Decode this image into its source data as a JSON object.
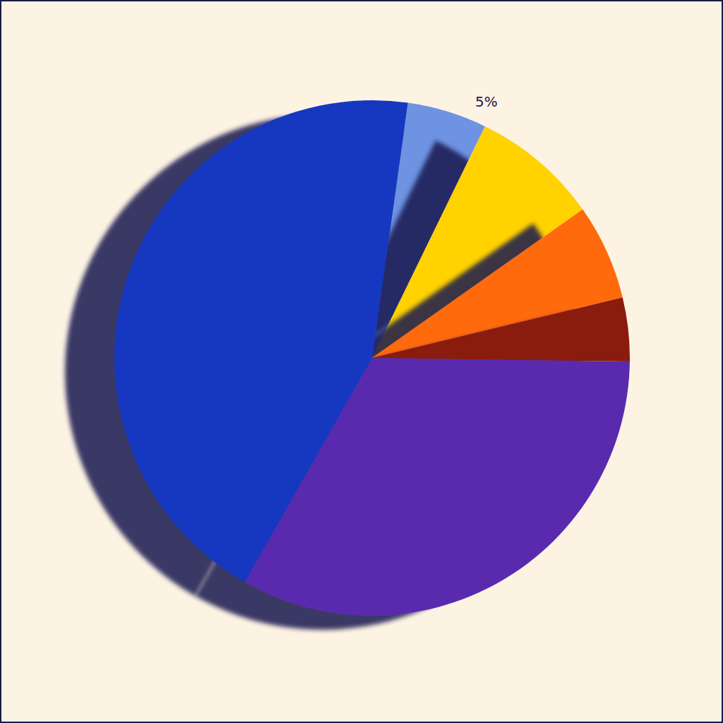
{
  "chart_data": {
    "type": "pie",
    "values": [
      5,
      8,
      6,
      4,
      33,
      44
    ],
    "value_labels": [
      "5%",
      null,
      null,
      null,
      null,
      null
    ],
    "colors": [
      "#6e93e2",
      "#ffd200",
      "#ff6a0a",
      "#8a1a0c",
      "#5a2aae",
      "#1438c0"
    ],
    "data_labels": true
  }
}
